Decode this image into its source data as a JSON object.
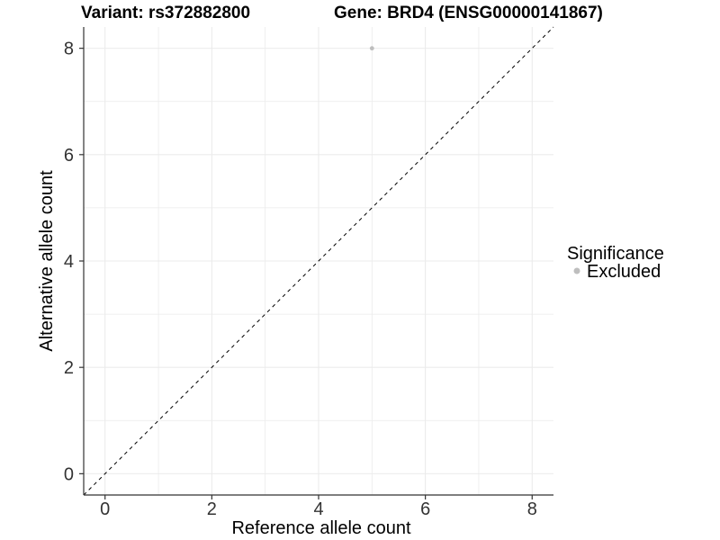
{
  "chart_data": {
    "type": "scatter",
    "titles": {
      "left": "Variant: rs372882800",
      "right": "Gene: BRD4 (ENSG00000141867)"
    },
    "xlabel": "Reference allele count",
    "ylabel": "Alternative allele count",
    "xlim": [
      -0.4,
      8.4
    ],
    "ylim": [
      -0.4,
      8.4
    ],
    "xticks": [
      0,
      2,
      4,
      6,
      8
    ],
    "yticks": [
      0,
      2,
      4,
      6,
      8
    ],
    "xminor": [
      1,
      3,
      5,
      7
    ],
    "yminor": [
      1,
      3,
      5,
      7
    ],
    "grid": "major+minor",
    "points": [
      {
        "x": 5,
        "y": 8,
        "significance": "Excluded"
      }
    ],
    "reference_line": {
      "kind": "y=x",
      "linetype": "dashed"
    },
    "legend": {
      "title": "Significance",
      "position": "right",
      "entries": [
        {
          "label": "Excluded",
          "color": "#bebebe"
        }
      ]
    }
  },
  "colors": {
    "background": "#ffffff",
    "grid": "#ebebeb",
    "axis": "#333333",
    "tick_label": "#333333",
    "point": "#bebebe",
    "reference_line": "#000000"
  }
}
